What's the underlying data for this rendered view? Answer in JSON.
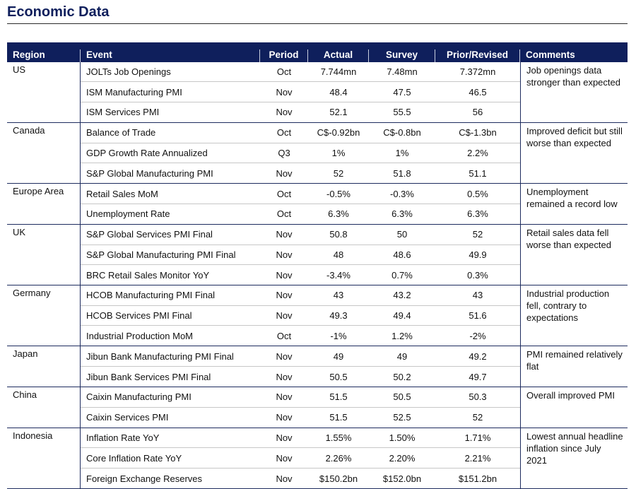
{
  "title": "Economic Data",
  "headers": {
    "region": "Region",
    "event": "Event",
    "period": "Period",
    "actual": "Actual",
    "survey": "Survey",
    "prior": "Prior/Revised",
    "comments": "Comments"
  },
  "groups": [
    {
      "region": "US",
      "comment": "Job openings data stronger than expected",
      "rows": [
        {
          "event": "JOLTs Job Openings",
          "period": "Oct",
          "actual": "7.744mn",
          "survey": "7.48mn",
          "prior": "7.372mn"
        },
        {
          "event": "ISM Manufacturing PMI",
          "period": "Nov",
          "actual": "48.4",
          "survey": "47.5",
          "prior": "46.5"
        },
        {
          "event": "ISM Services PMI",
          "period": "Nov",
          "actual": "52.1",
          "survey": "55.5",
          "prior": "56"
        }
      ]
    },
    {
      "region": "Canada",
      "comment": "Improved deficit but still worse than expected",
      "rows": [
        {
          "event": "Balance of Trade",
          "period": "Oct",
          "actual": "C$-0.92bn",
          "survey": "C$-0.8bn",
          "prior": "C$-1.3bn"
        },
        {
          "event": "GDP Growth Rate Annualized",
          "period": "Q3",
          "actual": "1%",
          "survey": "1%",
          "prior": "2.2%"
        },
        {
          "event": "S&P Global Manufacturing PMI",
          "period": "Nov",
          "actual": "52",
          "survey": "51.8",
          "prior": "51.1"
        }
      ]
    },
    {
      "region": "Europe Area",
      "comment": "Unemployment remained a record low",
      "rows": [
        {
          "event": "Retail Sales MoM",
          "period": "Oct",
          "actual": "-0.5%",
          "survey": "-0.3%",
          "prior": "0.5%"
        },
        {
          "event": "Unemployment Rate",
          "period": "Oct",
          "actual": "6.3%",
          "survey": "6.3%",
          "prior": "6.3%"
        }
      ]
    },
    {
      "region": "UK",
      "comment": "Retail sales data fell worse than expected",
      "rows": [
        {
          "event": "S&P Global Services PMI Final",
          "period": "Nov",
          "actual": "50.8",
          "survey": "50",
          "prior": "52"
        },
        {
          "event": "S&P Global Manufacturing PMI Final",
          "period": "Nov",
          "actual": "48",
          "survey": "48.6",
          "prior": "49.9"
        },
        {
          "event": "BRC Retail Sales Monitor YoY",
          "period": "Nov",
          "actual": "-3.4%",
          "survey": "0.7%",
          "prior": "0.3%"
        }
      ]
    },
    {
      "region": "Germany",
      "comment": "Industrial production fell, contrary to expectations",
      "rows": [
        {
          "event": "HCOB Manufacturing PMI Final",
          "period": "Nov",
          "actual": "43",
          "survey": "43.2",
          "prior": "43"
        },
        {
          "event": "HCOB Services PMI Final",
          "period": "Nov",
          "actual": "49.3",
          "survey": "49.4",
          "prior": "51.6"
        },
        {
          "event": "Industrial Production MoM",
          "period": "Oct",
          "actual": "-1%",
          "survey": "1.2%",
          "prior": "-2%"
        }
      ]
    },
    {
      "region": "Japan",
      "comment": "PMI remained relatively flat",
      "rows": [
        {
          "event": "Jibun Bank Manufacturing PMI Final",
          "period": "Nov",
          "actual": "49",
          "survey": "49",
          "prior": "49.2"
        },
        {
          "event": "Jibun Bank Services PMI Final",
          "period": "Nov",
          "actual": "50.5",
          "survey": "50.2",
          "prior": "49.7"
        }
      ]
    },
    {
      "region": "China",
      "comment": "Overall improved PMI",
      "rows": [
        {
          "event": "Caixin Manufacturing PMI",
          "period": "Nov",
          "actual": "51.5",
          "survey": "50.5",
          "prior": "50.3"
        },
        {
          "event": "Caixin Services PMI",
          "period": "Nov",
          "actual": "51.5",
          "survey": "52.5",
          "prior": "52"
        }
      ]
    },
    {
      "region": "Indonesia",
      "comment": "Lowest annual headline inflation since July 2021",
      "rows": [
        {
          "event": "Inflation Rate YoY",
          "period": "Nov",
          "actual": "1.55%",
          "survey": "1.50%",
          "prior": "1.71%"
        },
        {
          "event": "Core Inflation Rate YoY",
          "period": "Nov",
          "actual": "2.26%",
          "survey": "2.20%",
          "prior": "2.21%"
        },
        {
          "event": "Foreign Exchange Reserves",
          "period": "Nov",
          "actual": "$150.2bn",
          "survey": "$152.0bn",
          "prior": "$151.2bn"
        }
      ]
    }
  ]
}
